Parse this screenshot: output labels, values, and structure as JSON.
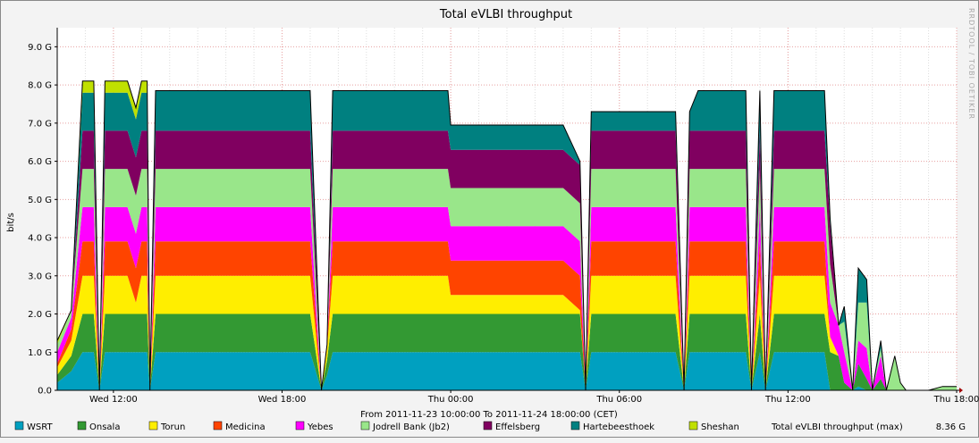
{
  "chart_data": {
    "type": "area",
    "title": "Total eVLBI throughput",
    "ylabel": "bit/s",
    "xlabel": "From 2011-11-23 10:00:00 To 2011-11-24 18:00:00 (CET)",
    "watermark": "RRDTOOL / TOBI OETIKER",
    "ylim": [
      0,
      9.5
    ],
    "yticks": [
      0,
      1,
      2,
      3,
      4,
      5,
      6,
      7,
      8,
      9
    ],
    "ytick_labels": [
      "0.0",
      "1.0 G",
      "2.0 G",
      "3.0 G",
      "4.0 G",
      "5.0 G",
      "6.0 G",
      "7.0 G",
      "8.0 G",
      "9.0 G"
    ],
    "x_range_hours": [
      0,
      32
    ],
    "xticks": [
      {
        "label": "Wed 12:00",
        "hour": 2
      },
      {
        "label": "Wed 18:00",
        "hour": 8
      },
      {
        "label": "Thu 00:00",
        "hour": 14
      },
      {
        "label": "Thu 06:00",
        "hour": 20
      },
      {
        "label": "Thu 12:00",
        "hour": 26
      },
      {
        "label": "Thu 18:00",
        "hour": 32
      }
    ],
    "x_hours": [
      0,
      0.5,
      0.9,
      1.2,
      1.3,
      1.5,
      1.7,
      2.0,
      2.2,
      2.5,
      2.8,
      3.0,
      3.2,
      3.3,
      3.5,
      3.8,
      4.0,
      5.0,
      6.0,
      7.0,
      8.0,
      9.0,
      9.4,
      9.6,
      9.8,
      10.0,
      11.0,
      12.0,
      13.0,
      13.9,
      14.0,
      15.0,
      16.0,
      17.0,
      18.0,
      18.6,
      18.8,
      19.0,
      19.5,
      20.0,
      20.5,
      21.0,
      21.5,
      22.0,
      22.3,
      22.5,
      22.8,
      23.0,
      23.5,
      24.0,
      24.5,
      24.7,
      25.0,
      25.2,
      25.5,
      26.0,
      27.0,
      27.3,
      27.5,
      27.8,
      28.0,
      28.3,
      28.5,
      28.8,
      29.0,
      29.3,
      29.5,
      29.8,
      30.0,
      30.2,
      30.5,
      31.0,
      31.5,
      32.0
    ],
    "series": [
      {
        "name": "WSRT",
        "color": "#00a0c0",
        "values": [
          0.2,
          0.5,
          1.0,
          1.0,
          1.0,
          0,
          1.0,
          1.0,
          1.0,
          1.0,
          1.0,
          1.0,
          1.0,
          0,
          1.0,
          1.0,
          1.0,
          1.0,
          1.0,
          1.0,
          1.0,
          1.0,
          0,
          0.4,
          1.0,
          1.0,
          1.0,
          1.0,
          1.0,
          1.0,
          1.0,
          1.0,
          1.0,
          1.0,
          1.0,
          1.0,
          0,
          1.0,
          1.0,
          1.0,
          1.0,
          1.0,
          1.0,
          1.0,
          0,
          1.0,
          1.0,
          1.0,
          1.0,
          1.0,
          1.0,
          0,
          1.0,
          0,
          1.0,
          1.0,
          1.0,
          1.0,
          0,
          0,
          0,
          0,
          0.1,
          0,
          0,
          0,
          0,
          0,
          0,
          0,
          0,
          0,
          0,
          0
        ]
      },
      {
        "name": "Onsala",
        "color": "#339933",
        "values": [
          0.2,
          0.4,
          1.0,
          1.0,
          1.0,
          0,
          1.0,
          1.0,
          1.0,
          1.0,
          1.0,
          1.0,
          1.0,
          0,
          1.0,
          1.0,
          1.0,
          1.0,
          1.0,
          1.0,
          1.0,
          1.0,
          0,
          0.4,
          1.0,
          1.0,
          1.0,
          1.0,
          1.0,
          1.0,
          1.0,
          1.0,
          1.0,
          1.0,
          1.0,
          1.0,
          0,
          1.0,
          1.0,
          1.0,
          1.0,
          1.0,
          1.0,
          1.0,
          0,
          1.0,
          1.0,
          1.0,
          1.0,
          1.0,
          1.0,
          0,
          1.0,
          0,
          1.0,
          1.0,
          1.0,
          1.0,
          1.0,
          0.9,
          0.2,
          0,
          0.6,
          0.3,
          0,
          0.3,
          0,
          0,
          0,
          0,
          0,
          0,
          0,
          0
        ]
      },
      {
        "name": "Torun",
        "color": "#ffee00",
        "values": [
          0.2,
          0.4,
          1.0,
          1.0,
          1.0,
          0,
          1.0,
          1.0,
          1.0,
          1.0,
          0.3,
          1.0,
          1.0,
          0,
          1.0,
          1.0,
          1.0,
          1.0,
          1.0,
          1.0,
          1.0,
          1.0,
          0,
          0.3,
          1.0,
          1.0,
          1.0,
          1.0,
          1.0,
          1.0,
          0.5,
          0.5,
          0.5,
          0.5,
          0.5,
          0.1,
          0,
          1.0,
          1.0,
          1.0,
          1.0,
          1.0,
          1.0,
          1.0,
          0,
          1.0,
          1.0,
          1.0,
          1.0,
          1.0,
          1.0,
          0,
          1.0,
          0,
          1.0,
          1.0,
          1.0,
          1.0,
          0.4,
          0,
          0,
          0,
          0,
          0,
          0,
          0,
          0,
          0,
          0,
          0,
          0,
          0,
          0,
          0
        ]
      },
      {
        "name": "Medicina",
        "color": "#ff4400",
        "values": [
          0.1,
          0.3,
          0.9,
          0.9,
          0.9,
          0,
          0.9,
          0.9,
          0.9,
          0.9,
          0.9,
          0.9,
          0.9,
          0,
          0.9,
          0.9,
          0.9,
          0.9,
          0.9,
          0.9,
          0.9,
          0.9,
          0,
          0.1,
          0.9,
          0.9,
          0.9,
          0.9,
          0.9,
          0.9,
          0.9,
          0.9,
          0.9,
          0.9,
          0.9,
          0.9,
          0,
          0.9,
          0.9,
          0.9,
          0.9,
          0.9,
          0.9,
          0.9,
          0,
          0.9,
          0.9,
          0.9,
          0.9,
          0.9,
          0.9,
          0,
          0.9,
          0,
          0.9,
          0.9,
          0.9,
          0.9,
          0,
          0,
          0,
          0,
          0,
          0,
          0,
          0,
          0,
          0,
          0,
          0,
          0,
          0,
          0,
          0
        ]
      },
      {
        "name": "Yebes",
        "color": "#ff00ff",
        "values": [
          0.3,
          0.3,
          0.9,
          0.9,
          0.9,
          0,
          0.9,
          0.9,
          0.9,
          0.9,
          0.9,
          0.9,
          0.9,
          0,
          0.9,
          0.9,
          0.9,
          0.9,
          0.9,
          0.9,
          0.9,
          0.9,
          0,
          0,
          0.9,
          0.9,
          0.9,
          0.9,
          0.9,
          0.9,
          0.9,
          0.9,
          0.9,
          0.9,
          0.9,
          0.9,
          0,
          0.9,
          0.9,
          0.9,
          0.9,
          0.9,
          0.9,
          0.9,
          0,
          0.9,
          0.9,
          0.9,
          0.9,
          0.9,
          0.9,
          0,
          0.9,
          0,
          0.9,
          0.9,
          0.9,
          0.9,
          0.9,
          0.8,
          0.8,
          0,
          0.6,
          0.8,
          0,
          0.6,
          0,
          0,
          0,
          0,
          0,
          0,
          0,
          0
        ]
      },
      {
        "name": "Jodrell Bank (Jb2)",
        "color": "#99e68a",
        "values": [
          0.2,
          0.2,
          1.0,
          1.0,
          1.0,
          0,
          1.0,
          1.0,
          1.0,
          1.0,
          1.0,
          1.0,
          1.0,
          0,
          1.0,
          1.0,
          1.0,
          1.0,
          1.0,
          1.0,
          1.0,
          1.0,
          0,
          0,
          1.0,
          1.0,
          1.0,
          1.0,
          1.0,
          1.0,
          1.0,
          1.0,
          1.0,
          1.0,
          1.0,
          1.0,
          0,
          1.0,
          1.0,
          1.0,
          1.0,
          1.0,
          1.0,
          1.0,
          0,
          1.0,
          1.0,
          1.0,
          1.0,
          1.0,
          1.0,
          0,
          1.0,
          0,
          1.0,
          1.0,
          1.0,
          1.0,
          1.0,
          0,
          0.8,
          0,
          1.0,
          1.2,
          0,
          0.2,
          0,
          0.9,
          0.2,
          0,
          0,
          0,
          0.1,
          0.1
        ]
      },
      {
        "name": "Effelsberg",
        "color": "#800060",
        "values": [
          0,
          0,
          1.0,
          1.0,
          1.0,
          0,
          1.0,
          1.0,
          1.0,
          1.0,
          1.0,
          1.0,
          1.0,
          0,
          1.0,
          1.0,
          1.0,
          1.0,
          1.0,
          1.0,
          1.0,
          1.0,
          0,
          0,
          1.0,
          1.0,
          1.0,
          1.0,
          1.0,
          1.0,
          1.0,
          1.0,
          1.0,
          1.0,
          1.0,
          1.0,
          0,
          1.0,
          1.0,
          1.0,
          1.0,
          1.0,
          1.0,
          1.0,
          0,
          1.0,
          1.0,
          1.0,
          1.0,
          1.0,
          1.0,
          0,
          1.0,
          0,
          1.0,
          1.0,
          1.0,
          1.0,
          1.0,
          0,
          0,
          0,
          0,
          0,
          0,
          0,
          0,
          0,
          0,
          0,
          0,
          0,
          0,
          0
        ]
      },
      {
        "name": "Hartebeesthoek",
        "color": "#008080",
        "values": [
          0,
          0,
          1.0,
          1.0,
          1.0,
          0,
          1.0,
          1.0,
          1.0,
          1.0,
          1.0,
          1.0,
          1.0,
          0,
          1.05,
          1.05,
          1.05,
          1.05,
          1.05,
          1.05,
          1.05,
          1.05,
          0,
          0,
          1.05,
          1.05,
          1.05,
          1.05,
          1.05,
          1.05,
          0.65,
          0.65,
          0.65,
          0.65,
          0.65,
          0.1,
          0,
          0.5,
          0.5,
          0.5,
          0.5,
          0.5,
          0.5,
          0.5,
          0,
          0.5,
          1.05,
          1.05,
          1.05,
          1.05,
          1.05,
          0,
          1.05,
          0,
          1.05,
          1.05,
          1.05,
          1.05,
          0.2,
          0,
          0.4,
          0,
          0.9,
          0.6,
          0,
          0.2,
          0,
          0,
          0,
          0,
          0,
          0,
          0,
          0
        ]
      },
      {
        "name": "Sheshan",
        "color": "#c0e000",
        "values": [
          0.1,
          0,
          0.3,
          0.3,
          0.3,
          0,
          0.3,
          0.3,
          0.3,
          0.3,
          0.3,
          0.3,
          0.3,
          0,
          0,
          0,
          0,
          0,
          0,
          0,
          0,
          0,
          0,
          0,
          0,
          0,
          0,
          0,
          0,
          0,
          0,
          0,
          0,
          0,
          0,
          0,
          0,
          0,
          0,
          0,
          0,
          0,
          0,
          0,
          0,
          0,
          0,
          0,
          0,
          0,
          0,
          0,
          0,
          0,
          0,
          0,
          0,
          0,
          0,
          0,
          0,
          0,
          0,
          0,
          0,
          0,
          0,
          0,
          0,
          0,
          0,
          0,
          0,
          0
        ]
      }
    ],
    "total_max_label": "Total eVLBI throughput (max)",
    "total_max_value": "8.36 G"
  }
}
